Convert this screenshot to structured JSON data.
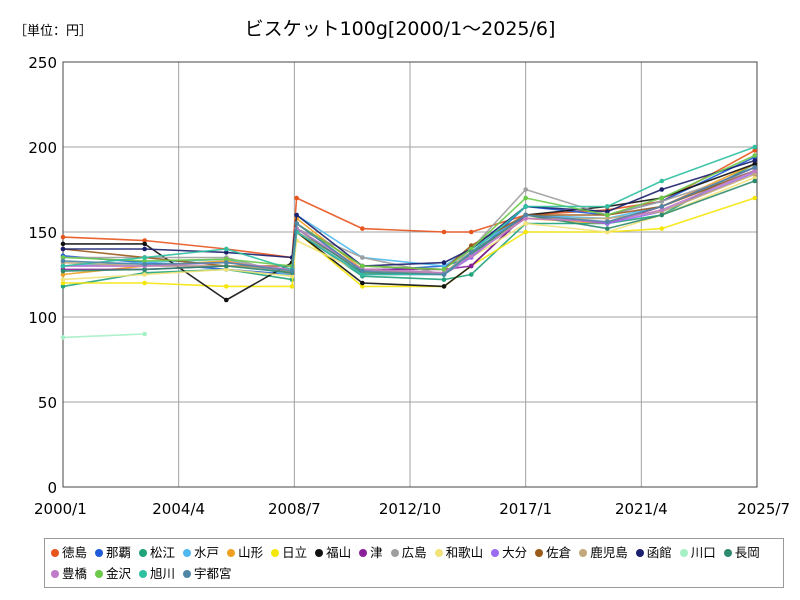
{
  "chart_data": {
    "type": "line",
    "title": "ビスケット100g[2000/1～2025/6]",
    "unit_label": "［単位：円］",
    "ylim": [
      0,
      250
    ],
    "y_ticks": [
      0,
      50,
      100,
      150,
      200,
      250
    ],
    "x_range": [
      "2000/1",
      "2025/7"
    ],
    "x_ticks": [
      "2000/1",
      "2004/4",
      "2008/7",
      "2012/10",
      "2017/1",
      "2021/4",
      "2025/7"
    ],
    "grid": true,
    "legend_position": "bottom",
    "x": [
      "2000/1",
      "2003/1",
      "2006/1",
      "2008/6",
      "2008/8",
      "2011/1",
      "2014/1",
      "2015/1",
      "2017/1",
      "2020/1",
      "2022/1",
      "2025/6"
    ],
    "series": [
      {
        "name": "徳島",
        "color": "#e8541e",
        "values": [
          147,
          145,
          140,
          135,
          170,
          152,
          150,
          150,
          160,
          163,
          168,
          198
        ]
      },
      {
        "name": "那覇",
        "color": "#1f5bd8",
        "values": [
          136,
          132,
          128,
          125,
          155,
          127,
          130,
          135,
          165,
          160,
          168,
          194
        ]
      },
      {
        "name": "松江",
        "color": "#1fa37a",
        "values": [
          118,
          126,
          128,
          122,
          150,
          124,
          122,
          125,
          155,
          155,
          160,
          190
        ]
      },
      {
        "name": "水戸",
        "color": "#4fb8f0",
        "values": [
          130,
          132,
          134,
          124,
          160,
          135,
          130,
          140,
          160,
          158,
          165,
          188
        ]
      },
      {
        "name": "山形",
        "color": "#f0a020",
        "values": [
          125,
          130,
          133,
          126,
          158,
          128,
          125,
          138,
          158,
          155,
          165,
          190
        ]
      },
      {
        "name": "日立",
        "color": "#f5e60a",
        "values": [
          120,
          120,
          118,
          118,
          150,
          118,
          118,
          130,
          150,
          150,
          152,
          170
        ]
      },
      {
        "name": "福山",
        "color": "#111111",
        "values": [
          143,
          143,
          110,
          132,
          150,
          120,
          118,
          130,
          160,
          165,
          170,
          190
        ]
      },
      {
        "name": "津",
        "color": "#8a1f9a",
        "values": [
          128,
          128,
          130,
          128,
          150,
          128,
          128,
          130,
          160,
          155,
          165,
          188
        ]
      },
      {
        "name": "広島",
        "color": "#9e9e9e",
        "values": [
          135,
          135,
          135,
          125,
          152,
          135,
          125,
          140,
          175,
          160,
          168,
          186
        ]
      },
      {
        "name": "和歌山",
        "color": "#f2e27a",
        "values": [
          122,
          125,
          128,
          124,
          145,
          126,
          125,
          135,
          155,
          150,
          160,
          182
        ]
      },
      {
        "name": "大分",
        "color": "#9a6df0",
        "values": [
          130,
          130,
          130,
          128,
          150,
          125,
          125,
          135,
          160,
          155,
          162,
          185
        ]
      },
      {
        "name": "佐倉",
        "color": "#9a5a1a",
        "values": [
          140,
          135,
          130,
          130,
          155,
          130,
          128,
          142,
          160,
          160,
          165,
          186
        ]
      },
      {
        "name": "鹿児島",
        "color": "#c2a87a",
        "values": [
          132,
          130,
          130,
          128,
          150,
          128,
          126,
          138,
          158,
          158,
          162,
          184
        ]
      },
      {
        "name": "函館",
        "color": "#1a1f6e",
        "values": [
          140,
          140,
          138,
          135,
          160,
          130,
          132,
          140,
          165,
          162,
          175,
          192
        ]
      },
      {
        "name": "川口",
        "color": "#a6f0c6",
        "values": [
          88,
          90,
          null,
          null,
          null,
          null,
          null,
          null,
          null,
          null,
          null,
          null
        ]
      },
      {
        "name": "長岡",
        "color": "#2d8a6e",
        "values": [
          127,
          128,
          130,
          126,
          152,
          126,
          125,
          137,
          160,
          152,
          160,
          180
        ]
      },
      {
        "name": "豊橋",
        "color": "#c07ac7",
        "values": [
          130,
          130,
          132,
          128,
          152,
          128,
          126,
          136,
          158,
          156,
          163,
          186
        ]
      },
      {
        "name": "金沢",
        "color": "#6cc94a",
        "values": [
          135,
          133,
          134,
          130,
          155,
          130,
          128,
          140,
          170,
          160,
          170,
          195
        ]
      },
      {
        "name": "旭川",
        "color": "#2ec0a0",
        "values": [
          130,
          135,
          140,
          128,
          150,
          125,
          125,
          138,
          165,
          165,
          180,
          200
        ]
      },
      {
        "name": "宇都宮",
        "color": "#4f86a6",
        "values": [
          133,
          131,
          132,
          127,
          155,
          127,
          125,
          138,
          160,
          156,
          165,
          188
        ]
      }
    ]
  }
}
